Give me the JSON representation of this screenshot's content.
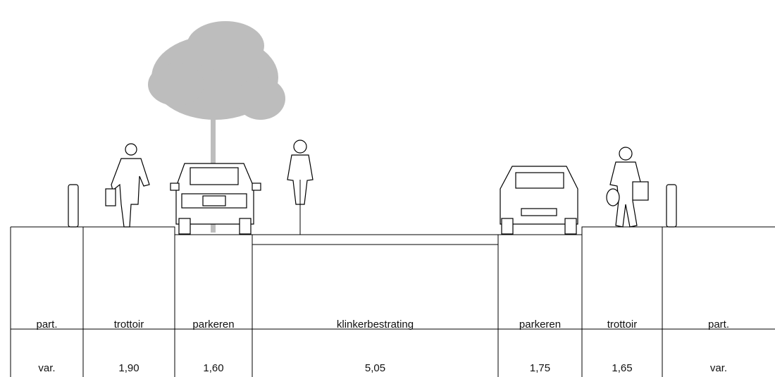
{
  "sections": [
    {
      "label": "part.",
      "width": "var."
    },
    {
      "label": "trottoir",
      "width": "1,90"
    },
    {
      "label": "parkeren",
      "width": "1,60"
    },
    {
      "label": "klinkerbestrating",
      "width": "5,05"
    },
    {
      "label": "parkeren",
      "width": "1,75"
    },
    {
      "label": "trottoir",
      "width": "1,65"
    },
    {
      "label": "part.",
      "width": "var."
    }
  ]
}
